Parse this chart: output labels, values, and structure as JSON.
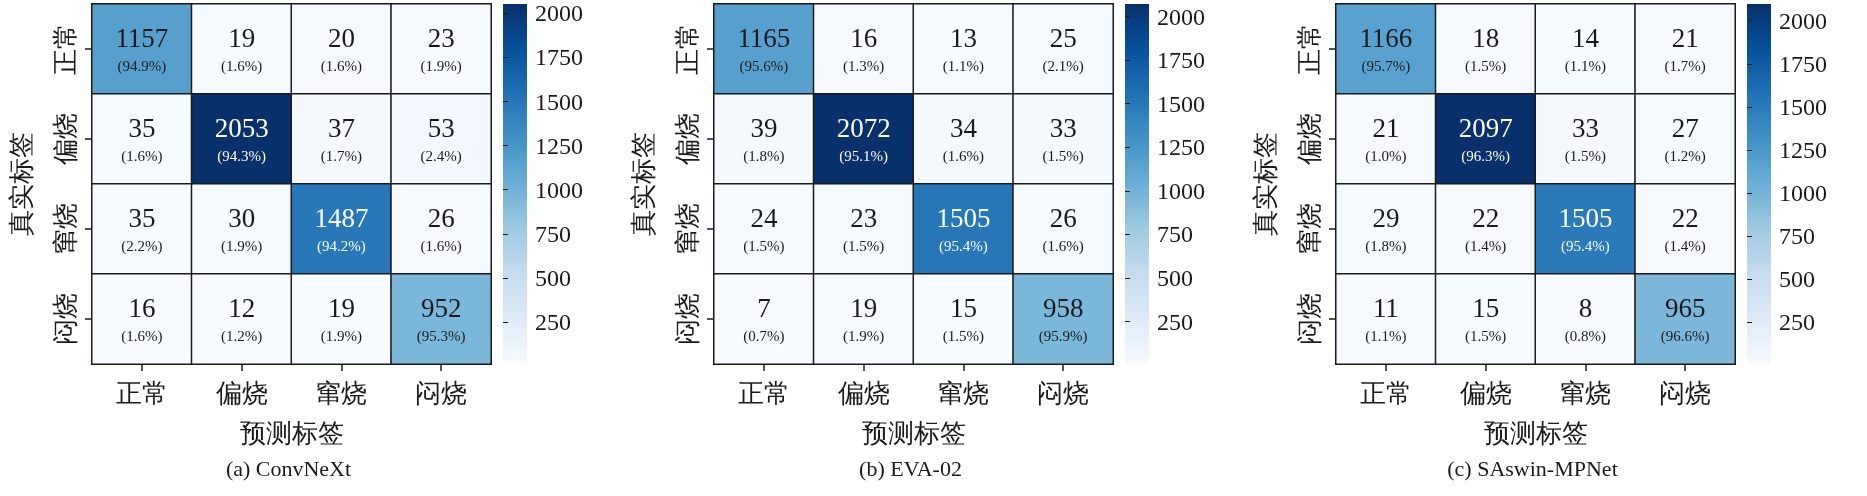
{
  "chart_data": [
    {
      "type": "heatmap",
      "title": "(a) ConvNeXt",
      "xlabel": "预测标签",
      "ylabel": "真实标签",
      "categories": [
        "正常",
        "偏烧",
        "窜烧",
        "闷烧"
      ],
      "y_categories": [
        "正常",
        "偏烧",
        "窜烧",
        "闷烧"
      ],
      "cells": [
        [
          1157,
          19,
          20,
          23
        ],
        [
          35,
          2053,
          37,
          53
        ],
        [
          35,
          30,
          1487,
          26
        ],
        [
          16,
          12,
          19,
          952
        ]
      ],
      "cell_labels": [
        [
          "1157\n(94.9%)",
          "19\n(1.6%)",
          "20\n(1.6%)",
          "23\n(1.9%)"
        ],
        [
          "35\n(1.6%)",
          "2053\n(94.3%)",
          "37\n(1.7%)",
          "53\n(2.4%)"
        ],
        [
          "35\n(2.2%)",
          "30\n(1.9%)",
          "1487\n(94.2%)",
          "26\n(1.6%)"
        ],
        [
          "16\n(1.6%)",
          "12\n(1.2%)",
          "19\n(1.9%)",
          "952\n(95.3%)"
        ]
      ],
      "clim": [
        12,
        2053
      ],
      "cticks": [
        250,
        500,
        750,
        1000,
        1250,
        1500,
        1750,
        2000
      ]
    },
    {
      "type": "heatmap",
      "title": "(b) EVA-02",
      "xlabel": "预测标签",
      "ylabel": "真实标签",
      "categories": [
        "正常",
        "偏烧",
        "窜烧",
        "闷烧"
      ],
      "y_categories": [
        "正常",
        "偏烧",
        "窜烧",
        "闷烧"
      ],
      "cells": [
        [
          1165,
          16,
          13,
          25
        ],
        [
          39,
          2072,
          34,
          33
        ],
        [
          24,
          23,
          1505,
          26
        ],
        [
          7,
          19,
          15,
          958
        ]
      ],
      "cell_labels": [
        [
          "1165\n(95.6%)",
          "16\n(1.3%)",
          "13\n(1.1%)",
          "25\n(2.1%)"
        ],
        [
          "39\n(1.8%)",
          "2072\n(95.1%)",
          "34\n(1.6%)",
          "33\n(1.5%)"
        ],
        [
          "24\n(1.5%)",
          "23\n(1.5%)",
          "1505\n(95.4%)",
          "26\n(1.6%)"
        ],
        [
          "7\n(0.7%)",
          "19\n(1.9%)",
          "15\n(1.5%)",
          "958\n(95.9%)"
        ]
      ],
      "clim": [
        7,
        2072
      ],
      "cticks": [
        250,
        500,
        750,
        1000,
        1250,
        1500,
        1750,
        2000
      ]
    },
    {
      "type": "heatmap",
      "title": "(c) SAswin-MPNet",
      "xlabel": "预测标签",
      "ylabel": "真实标签",
      "categories": [
        "正常",
        "偏烧",
        "窜烧",
        "闷烧"
      ],
      "y_categories": [
        "正常",
        "偏烧",
        "窜烧",
        "闷烧"
      ],
      "cells": [
        [
          1166,
          18,
          14,
          21
        ],
        [
          21,
          2097,
          33,
          27
        ],
        [
          29,
          22,
          1505,
          22
        ],
        [
          11,
          15,
          8,
          965
        ]
      ],
      "cell_labels": [
        [
          "1166\n(95.7%)",
          "18\n(1.5%)",
          "14\n(1.1%)",
          "21\n(1.7%)"
        ],
        [
          "21\n(1.0%)",
          "2097\n(96.3%)",
          "33\n(1.5%)",
          "27\n(1.2%)"
        ],
        [
          "29\n(1.8%)",
          "22\n(1.4%)",
          "1505\n(95.4%)",
          "22\n(1.4%)"
        ],
        [
          "11\n(1.1%)",
          "15\n(1.5%)",
          "8\n(0.8%)",
          "965\n(96.6%)"
        ]
      ],
      "clim": [
        8,
        2097
      ],
      "cticks": [
        250,
        500,
        750,
        1000,
        1250,
        1500,
        1750,
        2000
      ]
    }
  ]
}
